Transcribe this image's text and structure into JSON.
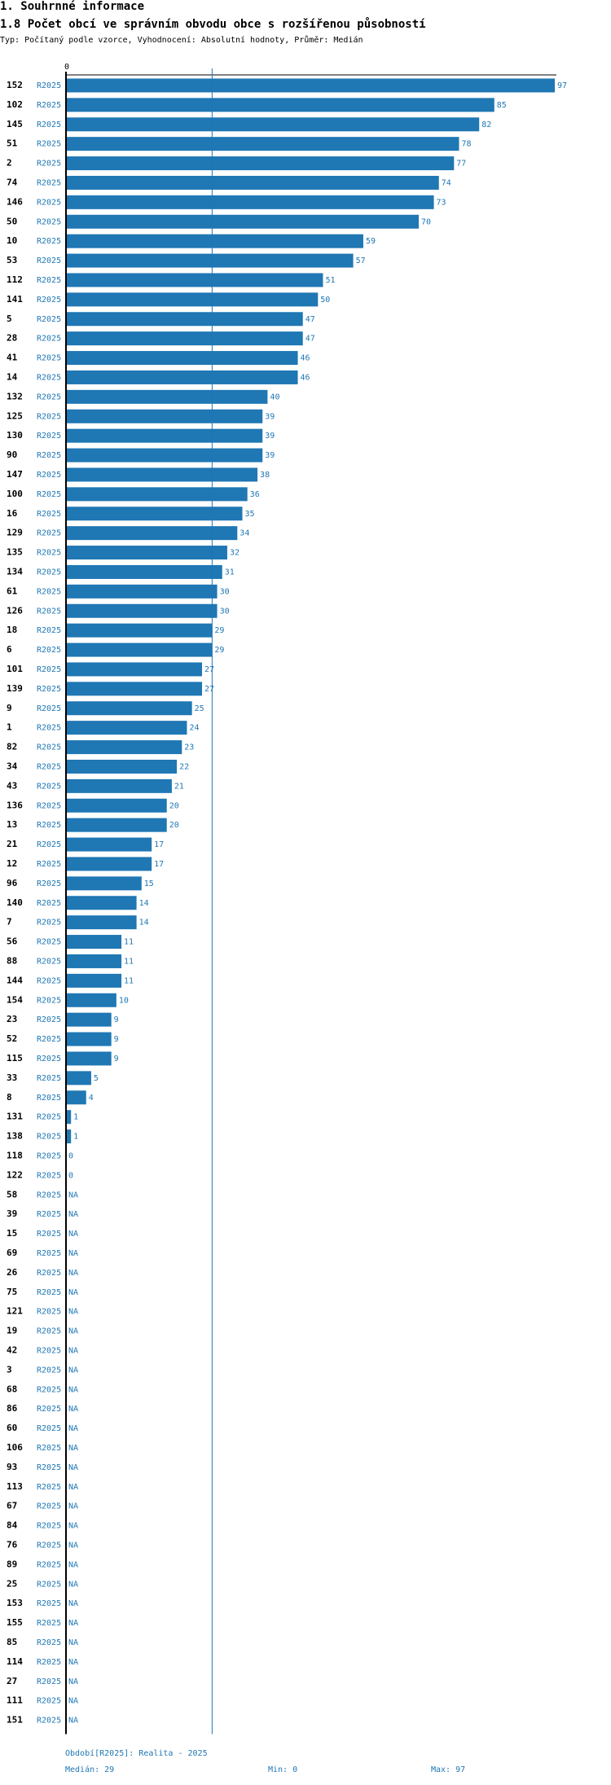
{
  "header": {
    "section_title": "1. Souhrnné informace",
    "chart_title": "1.8 Počet obcí ve správním obvodu obce s rozšířenou působností",
    "subtitle": "Typ: Počítaný podle vzorce, Vyhodnocení: Absolutní hodnoty, Průměr: Medián"
  },
  "colors": {
    "bar": "#1f77b4",
    "label": "#1f77b4",
    "axis": "#000000",
    "median_line": "#1f77b4"
  },
  "chart_data": {
    "type": "bar",
    "orientation": "horizontal",
    "series_label": "R2025",
    "axis_start_label": "0",
    "xlim": [
      0,
      97
    ],
    "median": 29,
    "categories": [
      "152",
      "102",
      "145",
      "51",
      "2",
      "74",
      "146",
      "50",
      "10",
      "53",
      "112",
      "141",
      "5",
      "28",
      "41",
      "14",
      "132",
      "125",
      "130",
      "90",
      "147",
      "100",
      "16",
      "129",
      "135",
      "134",
      "61",
      "126",
      "18",
      "6",
      "101",
      "139",
      "9",
      "1",
      "82",
      "34",
      "43",
      "136",
      "13",
      "21",
      "12",
      "96",
      "140",
      "7",
      "56",
      "88",
      "144",
      "154",
      "23",
      "52",
      "115",
      "33",
      "8",
      "131",
      "138",
      "118",
      "122",
      "58",
      "39",
      "15",
      "69",
      "26",
      "75",
      "121",
      "19",
      "42",
      "3",
      "68",
      "86",
      "60",
      "106",
      "93",
      "113",
      "67",
      "84",
      "76",
      "89",
      "25",
      "153",
      "155",
      "85",
      "114",
      "27",
      "111",
      "151"
    ],
    "values": [
      97,
      85,
      82,
      78,
      77,
      74,
      73,
      70,
      59,
      57,
      51,
      50,
      47,
      47,
      46,
      46,
      40,
      39,
      39,
      39,
      38,
      36,
      35,
      34,
      32,
      31,
      30,
      30,
      29,
      29,
      27,
      27,
      25,
      24,
      23,
      22,
      21,
      20,
      20,
      17,
      17,
      15,
      14,
      14,
      11,
      11,
      11,
      10,
      9,
      9,
      9,
      5,
      4,
      1,
      1,
      0,
      0,
      null,
      null,
      null,
      null,
      null,
      null,
      null,
      null,
      null,
      null,
      null,
      null,
      null,
      null,
      null,
      null,
      null,
      null,
      null,
      null,
      null,
      null,
      null,
      null,
      null,
      null,
      null,
      null
    ],
    "na_label": "NA"
  },
  "footer": {
    "period": "Období[R2025]: Realita - 2025",
    "median": "Medián: 29",
    "min": "Min: 0",
    "max": "Max: 97"
  }
}
